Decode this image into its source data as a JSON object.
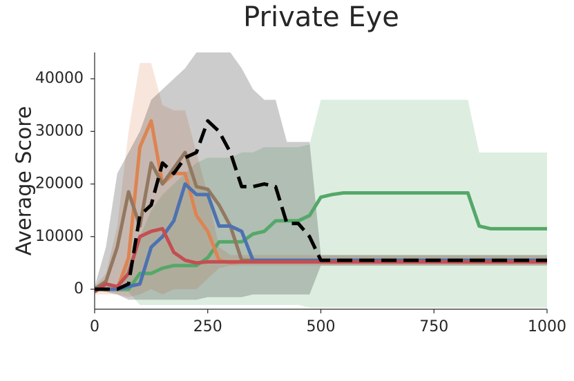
{
  "chart_data": {
    "type": "line",
    "title": "Private Eye",
    "y_label": "Average Score",
    "x": [
      0,
      25,
      50,
      75,
      100,
      125,
      150,
      175,
      200,
      225,
      250,
      275,
      300,
      325,
      350,
      375,
      400,
      425,
      450,
      475,
      500,
      525,
      550,
      575,
      600,
      625,
      650,
      675,
      700,
      725,
      750,
      775,
      800,
      825,
      850,
      875,
      900,
      925,
      950,
      975,
      1000
    ],
    "xlim": [
      0,
      1000
    ],
    "xticks": [
      0,
      250,
      500,
      750,
      1000
    ],
    "ylim": [
      -3800,
      45000
    ],
    "yticks": [
      0,
      10000,
      20000,
      30000,
      40000
    ],
    "series": [
      {
        "color": "#55a868",
        "values": [
          0,
          0,
          0,
          0,
          3000,
          3000,
          4000,
          4500,
          4500,
          4500,
          6000,
          9000,
          9000,
          9000,
          10500,
          11000,
          13000,
          13000,
          13000,
          14000,
          17500,
          18000,
          18300,
          18300,
          18300,
          18300,
          18300,
          18300,
          18300,
          18300,
          18300,
          18300,
          18300,
          18300,
          12000,
          11500,
          11500,
          11500,
          11500,
          11500,
          11500
        ],
        "band": {
          "lower": [
            -500,
            -500,
            -500,
            -500,
            -3000,
            -3000,
            -3000,
            -3000,
            -3000,
            -3000,
            -3000,
            -3000,
            -3000,
            -3000,
            -3000,
            -3000,
            -3000,
            -3000,
            -3000,
            -3500,
            -3500,
            -3500,
            -3500,
            -3500,
            -3500,
            -3500,
            -3500,
            -3500,
            -3500,
            -3500,
            -3500,
            -3500,
            -3500,
            -3500,
            -3500,
            -3500,
            -3500,
            -3500,
            -3500,
            -3500,
            -3500
          ],
          "upper": [
            500,
            500,
            1000,
            5000,
            10000,
            15000,
            18000,
            20000,
            22000,
            24000,
            25000,
            25000,
            25000,
            26000,
            26000,
            27000,
            27000,
            27000,
            27000,
            27500,
            36000,
            36000,
            36000,
            36000,
            36000,
            36000,
            36000,
            36000,
            36000,
            36000,
            36000,
            36000,
            36000,
            36000,
            26000,
            26000,
            26000,
            26000,
            26000,
            26000,
            26000
          ]
        }
      },
      {
        "color": "#dd8452",
        "values": [
          0,
          0,
          0,
          6000,
          27000,
          32000,
          20000,
          22000,
          22000,
          14000,
          11000,
          5500,
          5000,
          5200,
          5200,
          5200,
          5200,
          5200,
          5200,
          5200,
          5200,
          5200,
          5200,
          5200,
          5200,
          5200,
          5200,
          5200,
          5200,
          5200,
          5200,
          5200,
          5200,
          5200,
          5200,
          5200,
          5200,
          5200,
          5200,
          5200,
          5200
        ],
        "band": {
          "lower": [
            -1000,
            -1000,
            -1000,
            -1500,
            -1000,
            0,
            -1000,
            0,
            0,
            0,
            2000,
            4000,
            4500,
            4500,
            4500,
            4500,
            4500,
            4500,
            4500,
            4500,
            4500,
            4500,
            4500,
            4500,
            4500,
            4500,
            4500,
            4500,
            4500,
            4500,
            4500,
            4500,
            4500,
            4500,
            4500,
            4500,
            4500,
            4500,
            4500,
            4500,
            4500
          ],
          "upper": [
            500,
            3000,
            12000,
            30000,
            43000,
            43000,
            35000,
            34000,
            34000,
            26000,
            18000,
            8000,
            6500,
            6500,
            6500,
            6500,
            6500,
            6500,
            6500,
            6500,
            6500,
            6500,
            6500,
            6500,
            6500,
            6500,
            6500,
            6500,
            6500,
            6500,
            6500,
            6500,
            6500,
            6500,
            6500,
            6500,
            6500,
            6500,
            6500,
            6500,
            6500
          ]
        }
      },
      {
        "color": "#937860",
        "values": [
          0,
          1500,
          8000,
          18500,
          12000,
          24000,
          20000,
          23000,
          26000,
          19500,
          19000,
          16000,
          12000,
          5500,
          5500,
          5500,
          5500,
          5500,
          5500,
          5500,
          5500,
          5500,
          5500,
          5500,
          5500,
          5500,
          5500,
          5500,
          5500,
          5500,
          5500,
          5500,
          5500,
          5500,
          5500,
          5500,
          5500,
          5500,
          5500,
          5500,
          5500
        ]
      },
      {
        "color": "#4c72b0",
        "values": [
          0,
          0,
          0,
          500,
          1000,
          8000,
          10000,
          13000,
          20000,
          18000,
          18000,
          12000,
          12000,
          11000,
          5500,
          5500,
          5500,
          5500,
          5500,
          5500,
          5500,
          5500,
          5500,
          5500,
          5500,
          5500,
          5500,
          5500,
          5500,
          5500,
          5500,
          5500,
          5500,
          5500,
          5500,
          5500,
          5500,
          5500,
          5500,
          5500,
          5500
        ]
      },
      {
        "color": "#c44e52",
        "values": [
          -500,
          1000,
          500,
          3000,
          10000,
          11000,
          11500,
          7000,
          5500,
          5000,
          5200,
          5200,
          5200,
          5200,
          5200,
          5200,
          5200,
          5200,
          5200,
          5200,
          5200,
          5200,
          5200,
          5200,
          5200,
          5200,
          5200,
          5200,
          5200,
          5200,
          5200,
          5200,
          5200,
          5200,
          5200,
          5200,
          5200,
          5200,
          5200,
          5200,
          5200
        ]
      },
      {
        "color": "#000000",
        "dashed": true,
        "values": [
          0,
          0,
          0,
          1000,
          14000,
          16000,
          24000,
          22000,
          25000,
          26000,
          32000,
          30000,
          26000,
          19500,
          19500,
          20000,
          19500,
          12500,
          12500,
          10000,
          5500,
          5500,
          5500,
          5500,
          5500,
          5500,
          5500,
          5500,
          5500,
          5500,
          5500,
          5500,
          5500,
          5500,
          5500,
          5500,
          5500,
          5500,
          5500,
          5500,
          5500
        ],
        "band": {
          "lower": [
            0,
            -500,
            -1000,
            -2000,
            -2000,
            -2000,
            -2000,
            -2000,
            -2000,
            -2000,
            -1500,
            -1500,
            -1500,
            -1500,
            -1000,
            -1000,
            -1000,
            -1000,
            -1000,
            -1000,
            4500,
            4500,
            4500,
            4500,
            4500,
            4500,
            4500,
            4500,
            4500,
            4500,
            4500,
            4500,
            4500,
            4500,
            4500,
            4500,
            4500,
            4500,
            4500,
            4500,
            4500
          ],
          "upper": [
            500,
            8000,
            22000,
            26000,
            30000,
            36000,
            38000,
            40000,
            42000,
            45000,
            45000,
            45000,
            45000,
            42000,
            38000,
            36000,
            36000,
            28000,
            28000,
            28000,
            6500,
            6500,
            6500,
            6500,
            6500,
            6500,
            6500,
            6500,
            6500,
            6500,
            6500,
            6500,
            6500,
            6500,
            6500,
            6500,
            6500,
            6500,
            6500,
            6500,
            6500
          ]
        }
      }
    ]
  }
}
